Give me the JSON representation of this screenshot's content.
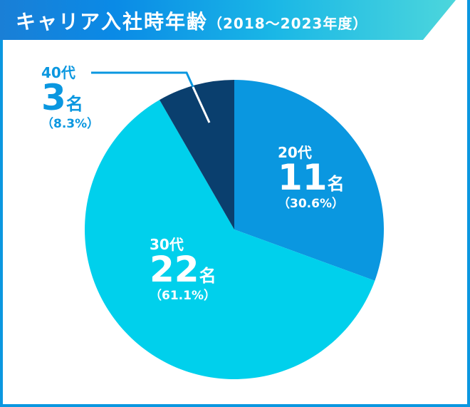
{
  "chart_data": {
    "type": "pie",
    "title": "キャリア入社時年齢",
    "subtitle": "（2018〜2023年度）",
    "unit": "名",
    "slices": [
      {
        "label": "20代",
        "value": 11,
        "percent": "（30.6%）",
        "color": "#0a97e0",
        "text_color": "#ffffff"
      },
      {
        "label": "30代",
        "value": 22,
        "percent": "（61.1%）",
        "color": "#00d0ec",
        "text_color": "#ffffff"
      },
      {
        "label": "40代",
        "value": 3,
        "percent": "（8.3%）",
        "color": "#0a3f6e",
        "text_color": "#0a97e0"
      }
    ]
  }
}
